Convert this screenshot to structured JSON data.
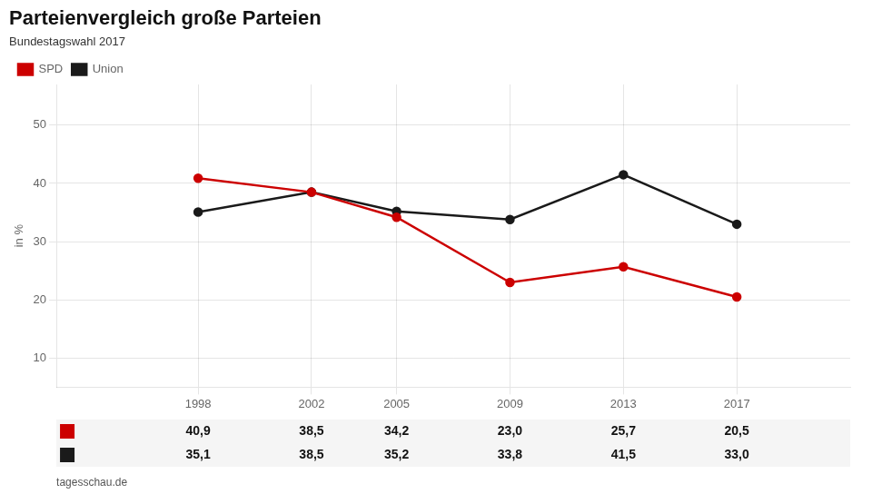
{
  "chart_data": {
    "type": "line",
    "title": "Parteienvergleich große Parteien",
    "subtitle": "Bundestagswahl 2017",
    "ylabel": "in %",
    "annotations": [
      "tagesschau.de"
    ],
    "x": [
      1998,
      2002,
      2005,
      2009,
      2013,
      2017
    ],
    "xlim": [
      1993,
      2021
    ],
    "xticks": [
      1998,
      2002,
      2005,
      2009,
      2013,
      2017
    ],
    "ylim": [
      5,
      57
    ],
    "yticks": [
      10,
      20,
      30,
      40,
      50
    ],
    "grid": true,
    "legend": "top",
    "data_labels": true,
    "series": [
      {
        "name": "SPD",
        "color": "#cc0000",
        "marker": "o",
        "values": [
          40.9,
          38.5,
          34.2,
          23.0,
          25.7,
          20.5
        ],
        "value_labels": [
          "40,9",
          "38,5",
          "34,2",
          "23,0",
          "25,7",
          "20,5"
        ]
      },
      {
        "name": "Union",
        "color": "#1a1a1a",
        "marker": "o",
        "values": [
          35.1,
          38.5,
          35.2,
          33.8,
          41.5,
          33.0
        ],
        "value_labels": [
          "35,1",
          "38,5",
          "35,2",
          "33,8",
          "41,5",
          "33,0"
        ]
      }
    ]
  }
}
